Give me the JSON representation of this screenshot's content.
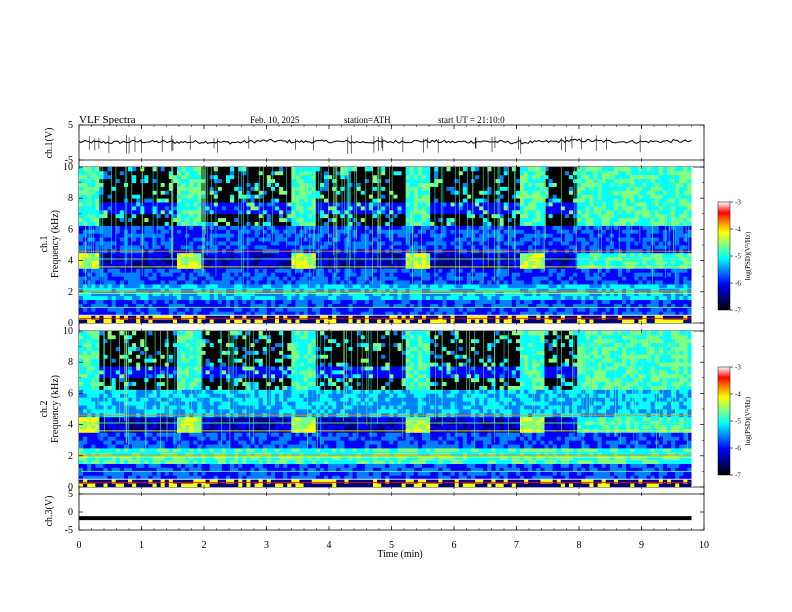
{
  "header": {
    "title": "VLF Spectra",
    "date": "Feb. 10, 2025",
    "station": "station=ATH",
    "start_ut": "start UT =  21:10:0"
  },
  "colors": {
    "colormap": [
      "#000000",
      "#00007f",
      "#0000ff",
      "#0080ff",
      "#00ffff",
      "#80ff80",
      "#ffff00",
      "#ff8000",
      "#ff0000",
      "#ffffff"
    ]
  },
  "chart_data": [
    {
      "type": "line",
      "panel": "ch1",
      "ylabel": "ch.1(V)",
      "ylim": [
        -5,
        5
      ],
      "yticks": [
        5,
        -5
      ],
      "xlim": [
        0,
        10
      ],
      "x": [
        0,
        0.5,
        1,
        1.5,
        2,
        2.5,
        3,
        3.5,
        4,
        4.5,
        5,
        5.5,
        6,
        6.5,
        7,
        7.5,
        8,
        8.5,
        9,
        9.5,
        9.8
      ],
      "values": [
        0.2,
        0.0,
        0.3,
        0.1,
        0.2,
        0.0,
        0.5,
        0.2,
        0.3,
        0.1,
        0.2,
        0.4,
        0.1,
        0.3,
        0.0,
        0.2,
        0.6,
        0.3,
        0.2,
        0.4,
        0.3
      ]
    },
    {
      "type": "heatmap",
      "panel": "ch1",
      "ylabel": "ch.1\nFrequency (kHz)",
      "yticks": [
        0,
        2,
        4,
        6,
        8,
        10
      ],
      "ylim": [
        0,
        10
      ],
      "xlim": [
        0,
        9.8
      ],
      "colorbar": {
        "label": "log(PSD)(V²/Hz)",
        "ticks": [
          -3,
          -4,
          -5,
          -6,
          -7
        ],
        "range": [
          -7,
          -3
        ]
      },
      "bright_segments_min": [
        [
          0,
          0.3
        ],
        [
          1.6,
          1.95
        ],
        [
          3.4,
          3.8
        ],
        [
          5.25,
          5.65
        ],
        [
          7.05,
          7.45
        ]
      ],
      "dark_segments_min": [
        [
          0.3,
          1.6
        ],
        [
          1.95,
          3.4
        ],
        [
          3.8,
          5.25
        ],
        [
          5.65,
          7.05
        ],
        [
          7.45,
          7.95
        ]
      ]
    },
    {
      "type": "heatmap",
      "panel": "ch2",
      "ylabel": "ch.2\nFrequency (kHz)",
      "yticks": [
        0,
        2,
        4,
        6,
        8,
        10
      ],
      "ylim": [
        0,
        10
      ],
      "xlim": [
        0,
        9.8
      ],
      "colorbar": {
        "label": "log(PSD)(V²/Hz)",
        "ticks": [
          -3,
          -4,
          -5,
          -6,
          -7
        ],
        "range": [
          -7,
          -3
        ]
      },
      "bright_segments_min": [
        [
          0,
          0.3
        ],
        [
          1.6,
          1.95
        ],
        [
          3.4,
          3.8
        ],
        [
          5.25,
          5.65
        ],
        [
          7.05,
          7.45
        ]
      ],
      "dark_segments_min": [
        [
          0.3,
          1.6
        ],
        [
          1.95,
          3.4
        ],
        [
          3.8,
          5.25
        ],
        [
          5.65,
          7.05
        ],
        [
          7.45,
          7.95
        ]
      ]
    },
    {
      "type": "line",
      "panel": "ch3",
      "ylabel": "ch.3(V)",
      "ylim": [
        -5,
        5
      ],
      "yticks": [
        5,
        0,
        -5
      ],
      "xlim": [
        0,
        10
      ],
      "x": [
        0,
        9.8
      ],
      "values": [
        -1.7,
        -1.7
      ]
    }
  ],
  "xaxis": {
    "label": "Time (min)",
    "ticks": [
      0,
      1,
      2,
      3,
      4,
      5,
      6,
      7,
      8,
      9,
      10
    ]
  }
}
